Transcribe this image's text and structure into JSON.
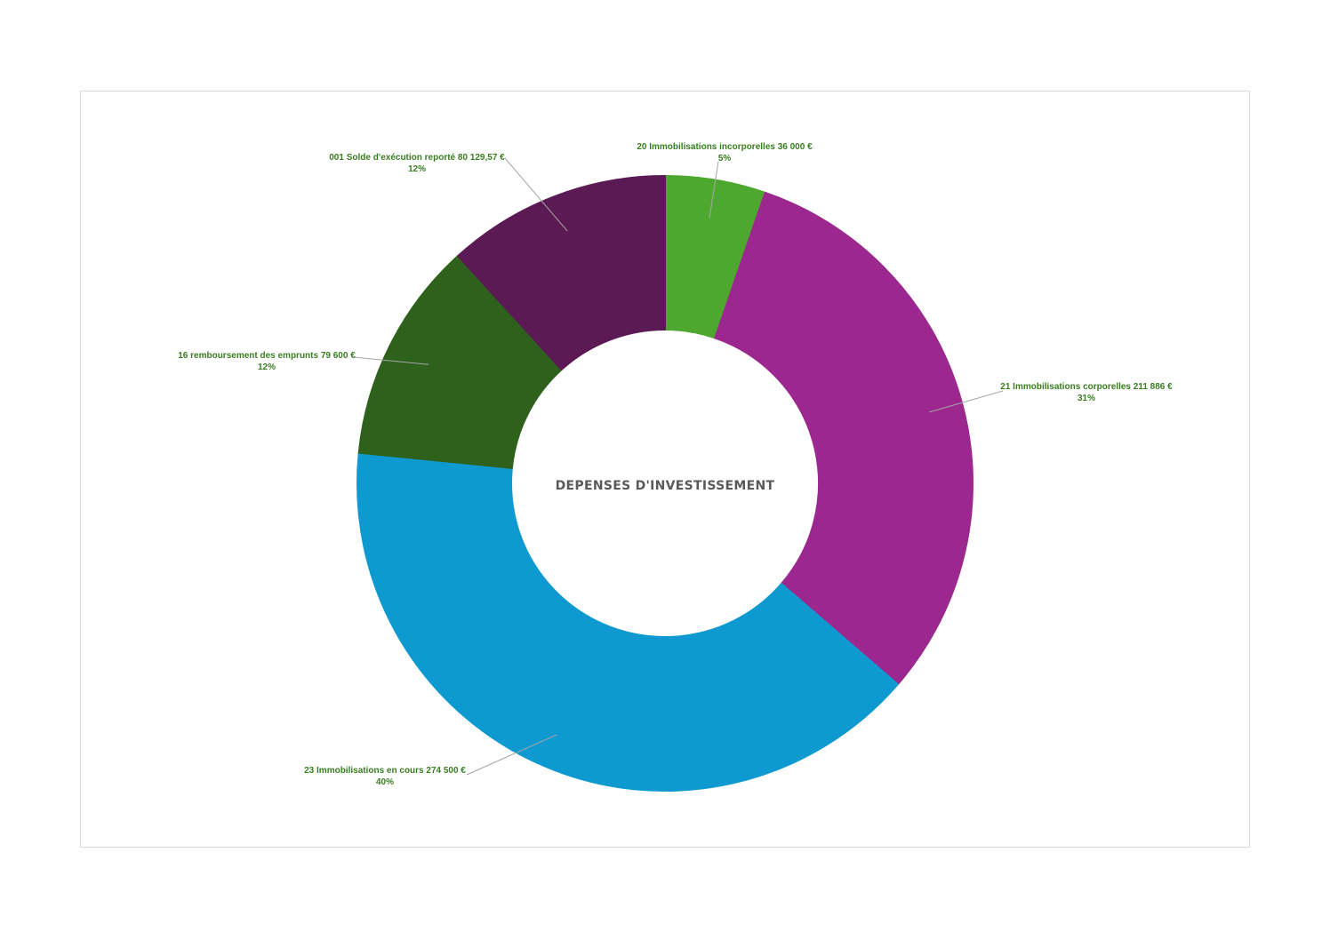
{
  "chart_data": {
    "type": "pie",
    "variant": "doughnut",
    "title": "DEPENSES D'INVESTISSEMENT",
    "slices": [
      {
        "name": "20 Immobilisations incorporelles",
        "value_label": "36 000 €",
        "value": 36000,
        "percent_label": "5%",
        "color": "#4ea72e"
      },
      {
        "name": "21 Immobilisations corporelles",
        "value_label": "211 886 €",
        "value": 211886,
        "percent_label": "31%",
        "color": "#9c288f"
      },
      {
        "name": "23 Immobilisations en cours",
        "value_label": "274 500 €",
        "value": 274500,
        "percent_label": "40%",
        "color": "#0e9ad0"
      },
      {
        "name": "16 remboursement des emprunts",
        "value_label": "79 600 €",
        "value": 79600,
        "percent_label": "12%",
        "color": "#2e611b"
      },
      {
        "name": "001 Solde d'exécution reporté",
        "value_label": "80 129,57 €",
        "value": 80129.57,
        "percent_label": "12%",
        "color": "#5c1a55"
      }
    ],
    "legend": "none",
    "label_color": "#3a7d22",
    "title_color": "#595959"
  }
}
